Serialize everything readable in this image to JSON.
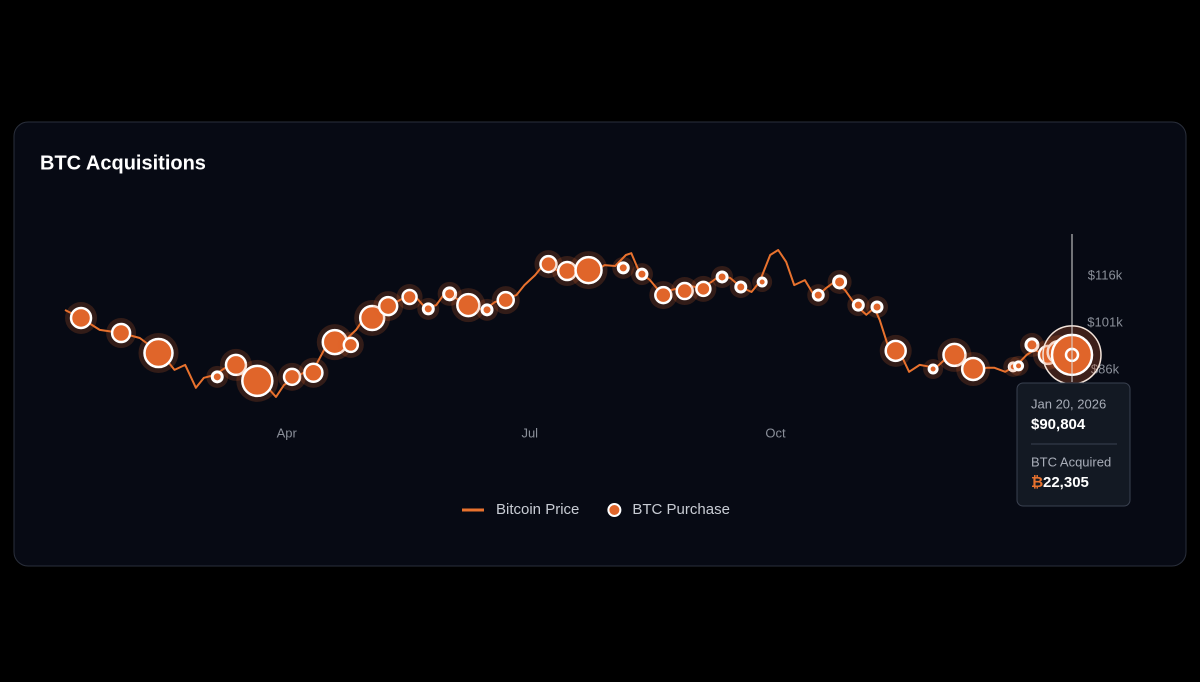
{
  "chart_data": {
    "type": "line",
    "title": "BTC Acquisitions",
    "xlim": [
      7,
      384
    ],
    "xticks": [
      {
        "value": 90,
        "label": "Apr"
      },
      {
        "value": 181,
        "label": "Jul"
      },
      {
        "value": 273,
        "label": "Oct"
      }
    ],
    "ylim": [
      76400,
      130700
    ],
    "yticks": [
      {
        "value": 86000,
        "label": "$86k"
      },
      {
        "value": 101000,
        "label": "$101k"
      },
      {
        "value": 116000,
        "label": "$116k"
      }
    ],
    "grid": false,
    "series": [
      {
        "name": "Bitcoin Price",
        "type": "line",
        "color": "#e8722e",
        "x": [
          7,
          13,
          20,
          28,
          35,
          41,
          45,
          48,
          52,
          56,
          59,
          63,
          67,
          71,
          74,
          78,
          82,
          86,
          89,
          93,
          97,
          101,
          104,
          108,
          112,
          116,
          119,
          123,
          127,
          131,
          134,
          138,
          142,
          146,
          149,
          153,
          157,
          161,
          164,
          168,
          172,
          176,
          179,
          183,
          187,
          191,
          194,
          198,
          202,
          206,
          209,
          213,
          217,
          219,
          222,
          226,
          230,
          234,
          237,
          241,
          245,
          249,
          252,
          256,
          260,
          264,
          267,
          271,
          274,
          277,
          280,
          284,
          288,
          292,
          295,
          299,
          303,
          307,
          310,
          312,
          315,
          320,
          323,
          327,
          333,
          337,
          340,
          344,
          348,
          352,
          355,
          359,
          363,
          367,
          370,
          374,
          378,
          382,
          384
        ],
        "values": [
          105150,
          102600,
          98800,
          97800,
          96200,
          92400,
          89200,
          86000,
          87600,
          80300,
          83500,
          84400,
          86700,
          87600,
          83500,
          81200,
          81200,
          77400,
          81200,
          83500,
          85400,
          87600,
          92400,
          94000,
          95600,
          98800,
          102600,
          103600,
          106700,
          107700,
          109000,
          109600,
          105800,
          106700,
          110300,
          109000,
          107400,
          105800,
          105200,
          107700,
          108700,
          109900,
          113100,
          116300,
          120500,
          117900,
          117300,
          117900,
          118600,
          117900,
          119500,
          119200,
          122700,
          123300,
          117300,
          114700,
          110600,
          111500,
          112200,
          112800,
          112200,
          114100,
          116000,
          115400,
          112500,
          110900,
          114100,
          122700,
          124300,
          120500,
          113100,
          114700,
          109000,
          112200,
          114100,
          111500,
          106700,
          103600,
          105800,
          102000,
          94000,
          90800,
          85400,
          87600,
          86700,
          89800,
          90800,
          88600,
          86000,
          86700,
          86700,
          85400,
          87300,
          90800,
          92400,
          90800,
          91700,
          91700,
          90804
        ]
      },
      {
        "name": "BTC Purchase",
        "type": "bubble",
        "color": "#e0652a",
        "x": [
          13,
          28,
          42,
          64,
          71,
          79,
          92,
          100,
          108,
          114,
          122,
          128,
          136,
          143,
          151,
          158,
          165,
          172,
          188,
          195,
          203,
          216,
          223,
          231,
          239,
          246,
          253,
          260,
          268,
          289,
          297,
          304,
          311,
          318,
          332,
          340,
          347,
          362,
          364,
          369,
          375,
          379,
          384
        ],
        "values": [
          102600,
          97800,
          91400,
          83800,
          87600,
          82500,
          83800,
          85100,
          94900,
          94000,
          102600,
          106400,
          109300,
          105500,
          110300,
          106700,
          105200,
          108300,
          119800,
          117600,
          117900,
          118600,
          116600,
          109900,
          111200,
          111900,
          115700,
          112500,
          114100,
          109900,
          114100,
          106700,
          106100,
          92100,
          86300,
          90800,
          86300,
          87000,
          87300,
          94000,
          90800,
          91700,
          90804
        ],
        "sizes": [
          5576,
          4517,
          10929,
          1394,
          5576,
          12547,
          3569,
          4517,
          8030,
          2732,
          8030,
          4517,
          2732,
          1394,
          2007,
          6747,
          1394,
          3569,
          3569,
          4517,
          9424,
          1394,
          1394,
          3569,
          3569,
          2732,
          1394,
          1394,
          892,
          1394,
          2007,
          1394,
          1394,
          5576,
          892,
          6747,
          6747,
          892,
          892,
          2007,
          4517,
          6747,
          22305
        ]
      }
    ],
    "tooltip": {
      "date": "Jan 20, 2026",
      "price": "$90,804",
      "label": "BTC Acquired",
      "unit": "₿",
      "amount": "22,305"
    }
  }
}
